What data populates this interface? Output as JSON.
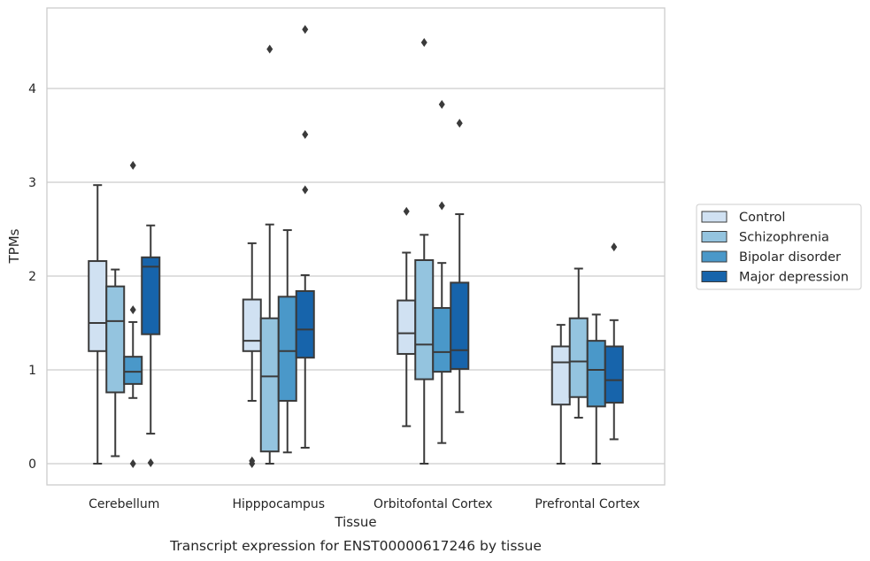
{
  "chart_data": {
    "type": "box",
    "xlabel": "Tissue",
    "ylabel": "TPMs",
    "caption": "Transcript expression for ENST00000617246 by tissue",
    "yticks": [
      0,
      1,
      2,
      3,
      4
    ],
    "ylim": [
      -0.22,
      4.87
    ],
    "grid": "horizontal",
    "legend_position": "right",
    "categories": [
      "Cerebellum",
      "Hipppocampus",
      "Orbitofontal Cortex",
      "Prefrontal Cortex"
    ],
    "series": [
      {
        "name": "Control",
        "color": "#d0e1f2",
        "boxes": [
          {
            "whislo": 0.0,
            "q1": 1.2,
            "med": 1.5,
            "q3": 2.16,
            "whishi": 2.97,
            "fliers": []
          },
          {
            "whislo": 0.67,
            "q1": 1.2,
            "med": 1.31,
            "q3": 1.75,
            "whishi": 2.35,
            "fliers": [
              0.0,
              0.03
            ]
          },
          {
            "whislo": 0.4,
            "q1": 1.17,
            "med": 1.39,
            "q3": 1.74,
            "whishi": 2.25,
            "fliers": [
              2.69
            ]
          },
          {
            "whislo": 0.0,
            "q1": 0.63,
            "med": 1.08,
            "q3": 1.25,
            "whishi": 1.48,
            "fliers": []
          }
        ]
      },
      {
        "name": "Schizophrenia",
        "color": "#94c4df",
        "boxes": [
          {
            "whislo": 0.08,
            "q1": 0.76,
            "med": 1.52,
            "q3": 1.89,
            "whishi": 2.07,
            "fliers": []
          },
          {
            "whislo": 0.0,
            "q1": 0.13,
            "med": 0.93,
            "q3": 1.55,
            "whishi": 2.55,
            "fliers": [
              4.42
            ]
          },
          {
            "whislo": 0.0,
            "q1": 0.9,
            "med": 1.27,
            "q3": 2.17,
            "whishi": 2.44,
            "fliers": [
              4.49
            ]
          },
          {
            "whislo": 0.49,
            "q1": 0.71,
            "med": 1.09,
            "q3": 1.55,
            "whishi": 2.08,
            "fliers": []
          }
        ]
      },
      {
        "name": "Bipolar disorder",
        "color": "#4a98c9",
        "boxes": [
          {
            "whislo": 0.7,
            "q1": 0.85,
            "med": 0.98,
            "q3": 1.14,
            "whishi": 1.51,
            "fliers": [
              0.0,
              1.64,
              3.18
            ]
          },
          {
            "whislo": 0.12,
            "q1": 0.67,
            "med": 1.2,
            "q3": 1.78,
            "whishi": 2.49,
            "fliers": []
          },
          {
            "whislo": 0.22,
            "q1": 0.98,
            "med": 1.19,
            "q3": 1.66,
            "whishi": 2.14,
            "fliers": [
              2.75,
              3.83
            ]
          },
          {
            "whislo": 0.0,
            "q1": 0.61,
            "med": 1.0,
            "q3": 1.31,
            "whishi": 1.59,
            "fliers": []
          }
        ]
      },
      {
        "name": "Major depression",
        "color": "#1764ab",
        "boxes": [
          {
            "whislo": 0.32,
            "q1": 1.38,
            "med": 2.1,
            "q3": 2.2,
            "whishi": 2.54,
            "fliers": [
              0.01
            ]
          },
          {
            "whislo": 0.17,
            "q1": 1.13,
            "med": 1.43,
            "q3": 1.84,
            "whishi": 2.01,
            "fliers": [
              2.92,
              3.51,
              4.63
            ]
          },
          {
            "whislo": 0.55,
            "q1": 1.01,
            "med": 1.21,
            "q3": 1.93,
            "whishi": 2.66,
            "fliers": [
              3.63
            ]
          },
          {
            "whislo": 0.26,
            "q1": 0.65,
            "med": 0.89,
            "q3": 1.25,
            "whishi": 1.53,
            "fliers": [
              2.31
            ]
          }
        ]
      }
    ]
  }
}
